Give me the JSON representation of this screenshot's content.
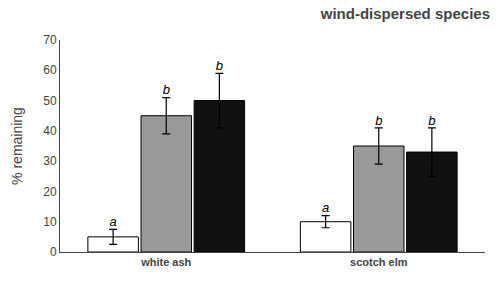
{
  "chart_data": {
    "type": "bar",
    "title": "wind-dispersed species",
    "ylabel": "% remaining",
    "categories": [
      "white ash",
      "scotch elm"
    ],
    "series": [
      {
        "color": "#ffffff",
        "edge_color": "#000000",
        "values": [
          5,
          10
        ],
        "errors": [
          2.5,
          2
        ],
        "annotations": [
          "a",
          "a"
        ]
      },
      {
        "color": "#999999",
        "edge_color": "#000000",
        "values": [
          45,
          35
        ],
        "errors": [
          6,
          6
        ],
        "annotations": [
          "b",
          "b"
        ]
      },
      {
        "color": "#111111",
        "edge_color": "#000000",
        "values": [
          50,
          33
        ],
        "errors": [
          9,
          8
        ],
        "annotations": [
          "b",
          "b"
        ]
      }
    ],
    "ylim": [
      0,
      70
    ],
    "yticks": [
      0,
      10,
      20,
      30,
      40,
      50,
      60,
      70
    ],
    "grid": false
  }
}
